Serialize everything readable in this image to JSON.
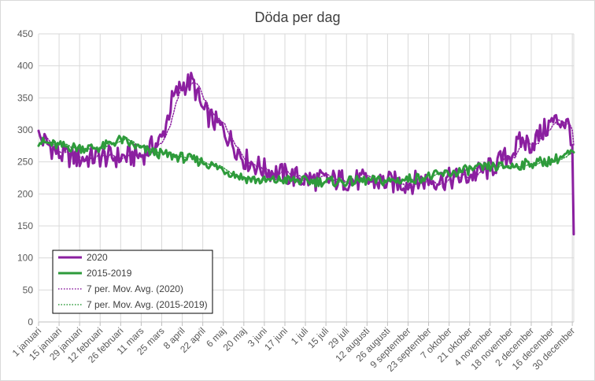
{
  "chart_data": {
    "type": "line",
    "title": "Döda per dag",
    "xlabel": "",
    "ylabel": "",
    "ylim": [
      0,
      450
    ],
    "yticks": [
      0,
      50,
      100,
      150,
      200,
      250,
      300,
      350,
      400,
      450
    ],
    "xlim": [
      1,
      366
    ],
    "grid": true,
    "legend_position": "bottom-left",
    "x_tick_labels": [
      {
        "day": 1,
        "label": "1 januari"
      },
      {
        "day": 15,
        "label": "15 januari"
      },
      {
        "day": 29,
        "label": "29 januari"
      },
      {
        "day": 43,
        "label": "12 februari"
      },
      {
        "day": 57,
        "label": "26 februari"
      },
      {
        "day": 71,
        "label": "11 mars"
      },
      {
        "day": 85,
        "label": "25 mars"
      },
      {
        "day": 99,
        "label": "8 april"
      },
      {
        "day": 113,
        "label": "22 april"
      },
      {
        "day": 127,
        "label": "6 maj"
      },
      {
        "day": 141,
        "label": "20 maj"
      },
      {
        "day": 155,
        "label": "3 juni"
      },
      {
        "day": 169,
        "label": "17 juni"
      },
      {
        "day": 183,
        "label": "1 juli"
      },
      {
        "day": 197,
        "label": "15 juli"
      },
      {
        "day": 211,
        "label": "29 juli"
      },
      {
        "day": 225,
        "label": "12 augusti"
      },
      {
        "day": 239,
        "label": "26 augusti"
      },
      {
        "day": 253,
        "label": "9 september"
      },
      {
        "day": 267,
        "label": "23 september"
      },
      {
        "day": 281,
        "label": "7 oktober"
      },
      {
        "day": 295,
        "label": "21 oktober"
      },
      {
        "day": 309,
        "label": "4 november"
      },
      {
        "day": 323,
        "label": "18 november"
      },
      {
        "day": 337,
        "label": "2 december"
      },
      {
        "day": 351,
        "label": "16 december"
      },
      {
        "day": 365,
        "label": "30 december"
      }
    ],
    "series": [
      {
        "name": "2020",
        "color": "#8B1FA0",
        "style": "solid",
        "width": 3,
        "anchors": [
          {
            "x": 1,
            "y": 290
          },
          {
            "x": 15,
            "y": 262
          },
          {
            "x": 29,
            "y": 255
          },
          {
            "x": 43,
            "y": 258
          },
          {
            "x": 57,
            "y": 257
          },
          {
            "x": 71,
            "y": 260
          },
          {
            "x": 85,
            "y": 285
          },
          {
            "x": 92,
            "y": 345
          },
          {
            "x": 99,
            "y": 370
          },
          {
            "x": 106,
            "y": 375
          },
          {
            "x": 113,
            "y": 330
          },
          {
            "x": 127,
            "y": 300
          },
          {
            "x": 141,
            "y": 255
          },
          {
            "x": 155,
            "y": 238
          },
          {
            "x": 169,
            "y": 230
          },
          {
            "x": 183,
            "y": 223
          },
          {
            "x": 197,
            "y": 221
          },
          {
            "x": 211,
            "y": 222
          },
          {
            "x": 225,
            "y": 220
          },
          {
            "x": 239,
            "y": 218
          },
          {
            "x": 253,
            "y": 217
          },
          {
            "x": 267,
            "y": 222
          },
          {
            "x": 281,
            "y": 223
          },
          {
            "x": 295,
            "y": 228
          },
          {
            "x": 309,
            "y": 240
          },
          {
            "x": 323,
            "y": 262
          },
          {
            "x": 330,
            "y": 282
          },
          {
            "x": 337,
            "y": 278
          },
          {
            "x": 344,
            "y": 295
          },
          {
            "x": 351,
            "y": 312
          },
          {
            "x": 358,
            "y": 315
          },
          {
            "x": 363,
            "y": 305
          },
          {
            "x": 365,
            "y": 280
          },
          {
            "x": 366,
            "y": 137
          }
        ]
      },
      {
        "name": "2015-2019",
        "color": "#2E9B3B",
        "style": "solid",
        "width": 3,
        "anchors": [
          {
            "x": 1,
            "y": 282
          },
          {
            "x": 15,
            "y": 275
          },
          {
            "x": 29,
            "y": 272
          },
          {
            "x": 43,
            "y": 272
          },
          {
            "x": 57,
            "y": 285
          },
          {
            "x": 71,
            "y": 270
          },
          {
            "x": 85,
            "y": 262
          },
          {
            "x": 99,
            "y": 257
          },
          {
            "x": 113,
            "y": 250
          },
          {
            "x": 127,
            "y": 238
          },
          {
            "x": 141,
            "y": 225
          },
          {
            "x": 155,
            "y": 220
          },
          {
            "x": 169,
            "y": 222
          },
          {
            "x": 183,
            "y": 220
          },
          {
            "x": 197,
            "y": 219
          },
          {
            "x": 211,
            "y": 219
          },
          {
            "x": 225,
            "y": 221
          },
          {
            "x": 239,
            "y": 220
          },
          {
            "x": 253,
            "y": 223
          },
          {
            "x": 267,
            "y": 227
          },
          {
            "x": 281,
            "y": 232
          },
          {
            "x": 295,
            "y": 238
          },
          {
            "x": 309,
            "y": 242
          },
          {
            "x": 323,
            "y": 243
          },
          {
            "x": 337,
            "y": 248
          },
          {
            "x": 351,
            "y": 252
          },
          {
            "x": 366,
            "y": 265
          }
        ]
      },
      {
        "name": "7 per. Mov. Avg. (2020)",
        "color": "#8B1FA0",
        "style": "dotted",
        "width": 1.5,
        "source": "2020"
      },
      {
        "name": "7 per. Mov. Avg. (2015-2019)",
        "color": "#2E9B3B",
        "style": "dotted",
        "width": 1.5,
        "source": "2015-2019"
      }
    ]
  }
}
